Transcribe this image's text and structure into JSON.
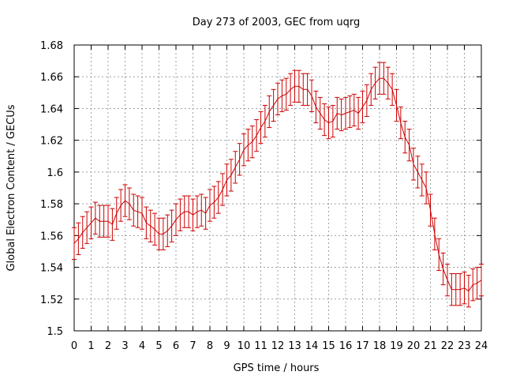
{
  "chart_data": {
    "type": "line",
    "title": "Day 273 of 2003, GEC from uqrg",
    "xlabel": "GPS time / hours",
    "ylabel": "Global Electron Content / GECUs",
    "xlim": [
      0,
      24
    ],
    "ylim": [
      1.5,
      1.68
    ],
    "xticks": [
      "0",
      "1",
      "2",
      "3",
      "4",
      "5",
      "6",
      "7",
      "8",
      "9",
      "10",
      "11",
      "12",
      "13",
      "14",
      "15",
      "16",
      "17",
      "18",
      "19",
      "20",
      "21",
      "22",
      "23",
      "24"
    ],
    "yticks": [
      "1.5",
      "1.52",
      "1.54",
      "1.56",
      "1.58",
      "1.6",
      "1.62",
      "1.64",
      "1.66",
      "1.68"
    ],
    "grid": true,
    "series_color": "#cc0000",
    "error": 0.01,
    "series": [
      {
        "name": "GEC",
        "x": [
          0,
          0.25,
          0.5,
          0.75,
          1,
          1.25,
          1.5,
          1.75,
          2,
          2.25,
          2.5,
          2.75,
          3,
          3.25,
          3.5,
          3.75,
          4,
          4.25,
          4.5,
          4.75,
          5,
          5.25,
          5.5,
          5.75,
          6,
          6.25,
          6.5,
          6.75,
          7,
          7.25,
          7.5,
          7.75,
          8,
          8.25,
          8.5,
          8.75,
          9,
          9.25,
          9.5,
          9.75,
          10,
          10.25,
          10.5,
          10.75,
          11,
          11.25,
          11.5,
          11.75,
          12,
          12.25,
          12.5,
          12.75,
          13,
          13.25,
          13.5,
          13.75,
          14,
          14.25,
          14.5,
          14.75,
          15,
          15.25,
          15.5,
          15.75,
          16,
          16.25,
          16.5,
          16.75,
          17,
          17.25,
          17.5,
          17.75,
          18,
          18.25,
          18.5,
          18.75,
          19,
          19.25,
          19.5,
          19.75,
          20,
          20.25,
          20.5,
          20.75,
          21,
          21.25,
          21.5,
          21.75,
          22,
          22.25,
          22.5,
          22.75,
          23,
          23.25,
          23.5,
          23.75,
          24
        ],
        "values": [
          1.555,
          1.558,
          1.562,
          1.565,
          1.568,
          1.571,
          1.569,
          1.569,
          1.569,
          1.567,
          1.574,
          1.579,
          1.582,
          1.58,
          1.576,
          1.575,
          1.574,
          1.568,
          1.566,
          1.564,
          1.561,
          1.561,
          1.563,
          1.566,
          1.57,
          1.573,
          1.575,
          1.575,
          1.573,
          1.575,
          1.576,
          1.574,
          1.579,
          1.581,
          1.584,
          1.589,
          1.595,
          1.598,
          1.603,
          1.608,
          1.614,
          1.617,
          1.619,
          1.623,
          1.628,
          1.632,
          1.638,
          1.642,
          1.646,
          1.648,
          1.649,
          1.652,
          1.654,
          1.654,
          1.652,
          1.652,
          1.648,
          1.641,
          1.637,
          1.633,
          1.631,
          1.632,
          1.637,
          1.636,
          1.637,
          1.638,
          1.639,
          1.637,
          1.641,
          1.645,
          1.652,
          1.656,
          1.659,
          1.659,
          1.656,
          1.652,
          1.642,
          1.631,
          1.622,
          1.617,
          1.605,
          1.6,
          1.595,
          1.59,
          1.576,
          1.561,
          1.548,
          1.539,
          1.532,
          1.526,
          1.526,
          1.526,
          1.527,
          1.525,
          1.529,
          1.53,
          1.532
        ]
      }
    ]
  }
}
